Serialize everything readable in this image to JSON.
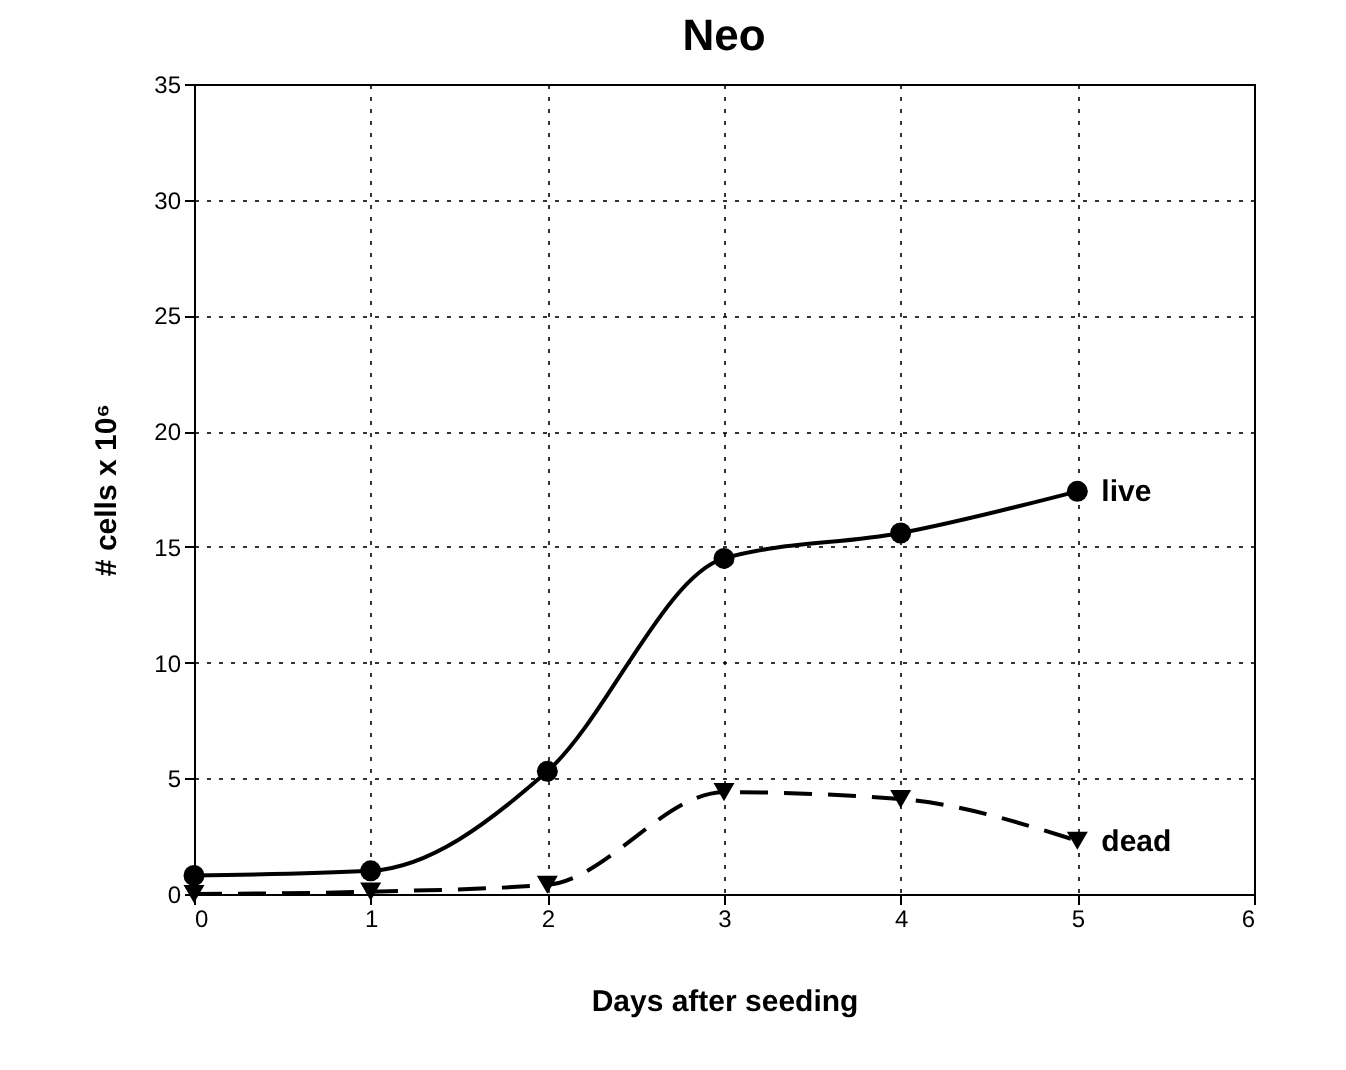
{
  "chart_data": {
    "type": "line",
    "title": "Neo",
    "xlabel": "Days after seeding",
    "ylabel": "# cells x 10⁶",
    "x": [
      0,
      1,
      2,
      3,
      4,
      5
    ],
    "series": [
      {
        "name": "live",
        "color": "#000000",
        "marker": "circle",
        "line_style": "solid",
        "values": [
          0.8,
          1.0,
          5.3,
          14.5,
          15.6,
          17.4
        ]
      },
      {
        "name": "dead",
        "color": "#000000",
        "marker": "triangle",
        "line_style": "dashed",
        "values": [
          0,
          0.1,
          0.4,
          4.4,
          4.1,
          2.3
        ]
      }
    ],
    "xlim": [
      0,
      6
    ],
    "xticks": [
      0,
      1,
      2,
      3,
      4,
      5,
      6
    ],
    "ylim": [
      0,
      35
    ],
    "yticks": [
      0,
      5,
      10,
      15,
      20,
      25,
      30,
      35
    ],
    "grid": true,
    "legend": false
  }
}
